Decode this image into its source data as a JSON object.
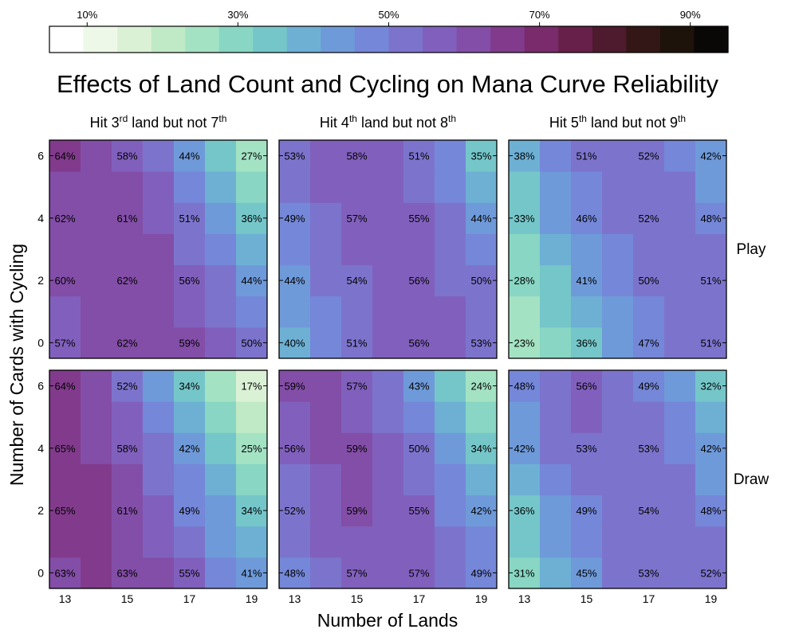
{
  "chart_data": {
    "type": "heatmap",
    "title": "Effects of Land Count and Cycling on Mana Curve Reliability",
    "xlabel": "Number of Lands",
    "ylabel": "Number of Cards with Cycling",
    "colorbar": {
      "ticks": [
        "10%",
        "30%",
        "50%",
        "70%",
        "90%"
      ],
      "tick_values": [
        10,
        30,
        50,
        70,
        90
      ],
      "range": [
        5,
        95
      ],
      "bins": 18,
      "colors": [
        "#ffffff",
        "#eef8e8",
        "#dbf1d6",
        "#c0eac5",
        "#a4e2c4",
        "#88d6c3",
        "#75c6c9",
        "#6db0d4",
        "#6f9ad9",
        "#7587d8",
        "#7c74cc",
        "#8160bd",
        "#834ea7",
        "#823b8c",
        "#7a2b6c",
        "#67204a",
        "#4e1a2d",
        "#331716",
        "#1e130b",
        "#0a0707"
      ]
    },
    "x_values": [
      13,
      14,
      15,
      16,
      17,
      18,
      19
    ],
    "y_values": [
      0,
      1,
      2,
      3,
      4,
      5,
      6
    ],
    "x_tick_labels": [
      "13",
      "15",
      "17",
      "19"
    ],
    "x_tick_values": [
      13,
      15,
      17,
      19
    ],
    "y_tick_labels": [
      "0",
      "2",
      "4",
      "6"
    ],
    "y_tick_values": [
      0,
      2,
      4,
      6
    ],
    "rows": [
      "Play",
      "Draw"
    ],
    "columns": [
      {
        "prefix": "Hit 3",
        "sup1": "rd",
        "mid": " land but not 7",
        "sup2": "th"
      },
      {
        "prefix": "Hit 4",
        "sup1": "th",
        "mid": " land but not 8",
        "sup2": "th"
      },
      {
        "prefix": "Hit 5",
        "sup1": "th",
        "mid": " land but not 9",
        "sup2": "th"
      }
    ],
    "panels": [
      {
        "row": "Play",
        "col": 0,
        "values": [
          [
            57,
            62,
            62,
            61,
            59,
            55,
            50
          ],
          [
            58,
            62,
            62,
            61,
            58,
            53,
            47
          ],
          [
            60,
            62,
            62,
            60,
            56,
            50,
            44
          ],
          [
            61,
            62,
            62,
            59,
            54,
            48,
            40
          ],
          [
            62,
            62,
            61,
            58,
            51,
            44,
            36
          ],
          [
            63,
            62,
            60,
            56,
            48,
            40,
            31
          ],
          [
            64,
            62,
            58,
            54,
            44,
            35,
            27
          ]
        ]
      },
      {
        "row": "Play",
        "col": 1,
        "values": [
          [
            40,
            46,
            51,
            55,
            56,
            56,
            53
          ],
          [
            42,
            48,
            53,
            56,
            57,
            55,
            52
          ],
          [
            44,
            50,
            54,
            56,
            56,
            54,
            50
          ],
          [
            46,
            51,
            56,
            57,
            56,
            52,
            47
          ],
          [
            49,
            53,
            57,
            57,
            55,
            50,
            44
          ],
          [
            51,
            55,
            58,
            57,
            53,
            48,
            40
          ],
          [
            53,
            56,
            58,
            56,
            51,
            46,
            35
          ]
        ]
      },
      {
        "row": "Play",
        "col": 2,
        "values": [
          [
            23,
            31,
            36,
            43,
            47,
            50,
            51
          ],
          [
            25,
            34,
            39,
            45,
            49,
            51,
            51
          ],
          [
            28,
            36,
            41,
            47,
            50,
            51,
            51
          ],
          [
            30,
            38,
            44,
            49,
            51,
            51,
            50
          ],
          [
            33,
            41,
            46,
            50,
            52,
            51,
            48
          ],
          [
            35,
            43,
            49,
            51,
            52,
            50,
            45
          ],
          [
            38,
            46,
            51,
            52,
            52,
            48,
            42
          ]
        ]
      },
      {
        "row": "Draw",
        "col": 0,
        "values": [
          [
            63,
            65,
            63,
            60,
            55,
            48,
            41
          ],
          [
            64,
            65,
            62,
            58,
            52,
            45,
            37
          ],
          [
            65,
            65,
            61,
            56,
            49,
            41,
            34
          ],
          [
            65,
            64,
            60,
            54,
            46,
            37,
            29
          ],
          [
            65,
            63,
            58,
            51,
            42,
            33,
            25
          ],
          [
            65,
            62,
            56,
            48,
            38,
            29,
            21
          ],
          [
            64,
            60,
            52,
            44,
            34,
            25,
            17
          ]
        ]
      },
      {
        "row": "Draw",
        "col": 1,
        "values": [
          [
            48,
            53,
            57,
            58,
            57,
            54,
            49
          ],
          [
            52,
            56,
            58,
            58,
            56,
            52,
            46
          ],
          [
            52,
            57,
            59,
            58,
            55,
            49,
            42
          ],
          [
            54,
            58,
            59,
            57,
            53,
            46,
            38
          ],
          [
            56,
            59,
            59,
            56,
            50,
            42,
            34
          ],
          [
            58,
            60,
            58,
            53,
            47,
            38,
            29
          ],
          [
            59,
            62,
            57,
            51,
            43,
            34,
            24
          ]
        ]
      },
      {
        "row": "Draw",
        "col": 2,
        "values": [
          [
            31,
            39,
            45,
            50,
            53,
            54,
            52
          ],
          [
            34,
            42,
            47,
            52,
            54,
            53,
            50
          ],
          [
            36,
            45,
            49,
            53,
            54,
            52,
            48
          ],
          [
            39,
            47,
            51,
            54,
            54,
            51,
            45
          ],
          [
            42,
            50,
            53,
            54,
            53,
            49,
            42
          ],
          [
            45,
            52,
            55,
            54,
            51,
            46,
            37
          ],
          [
            48,
            54,
            56,
            53,
            49,
            43,
            32
          ]
        ]
      }
    ]
  }
}
